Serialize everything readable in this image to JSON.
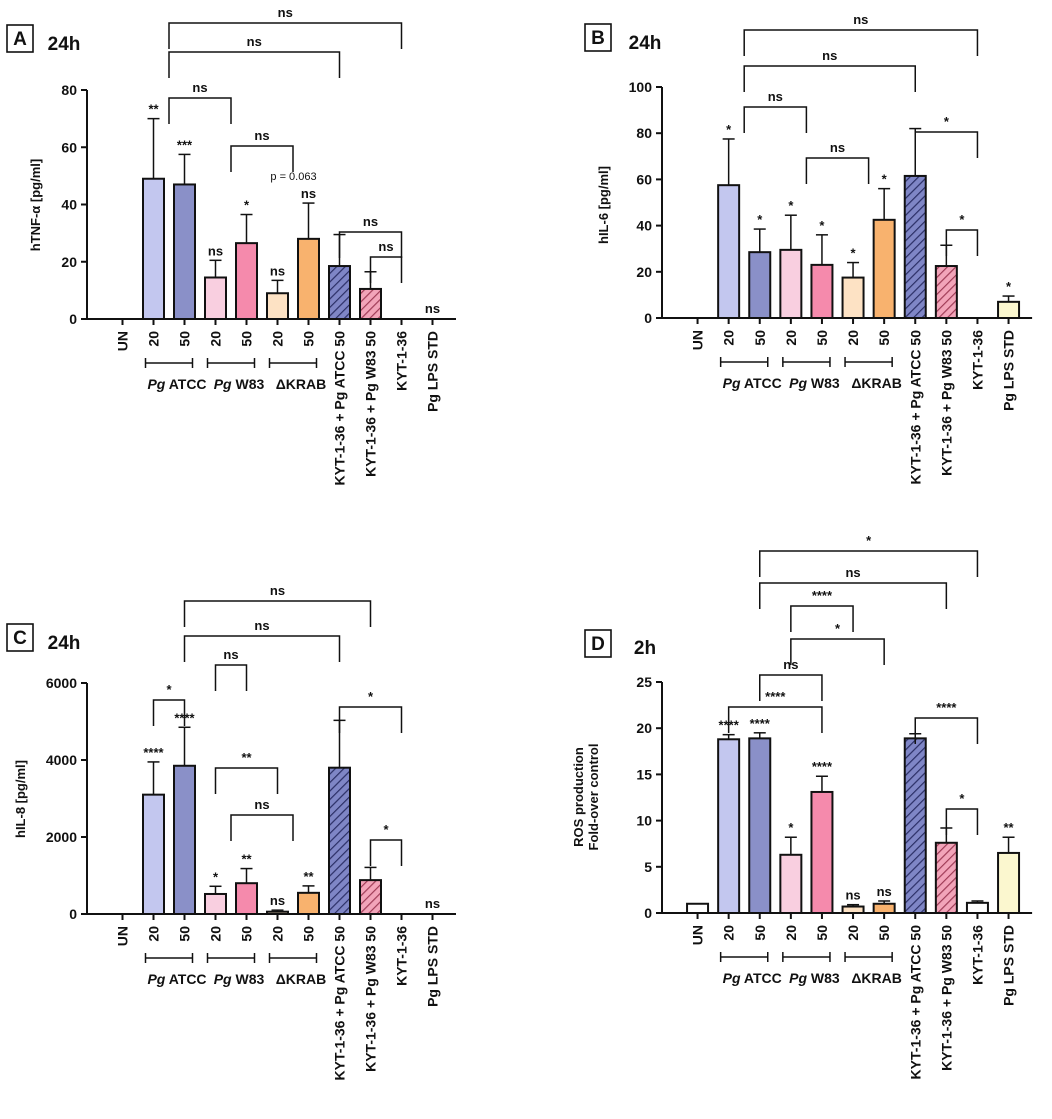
{
  "colors": {
    "UN": "#ffffff",
    "ATCC20": "#c3c7ef",
    "ATCC50": "#8a90c8",
    "W83_20": "#f9cfe0",
    "W83_50": "#f58aac",
    "KRAB20": "#fde2c4",
    "KRAB50": "#f8b26e",
    "KYT_ATCC": "#7f86c6",
    "KYT_W83": "#f2a4b9",
    "KYT": "#ffffff",
    "LPS": "#fbf7cf",
    "outline": "#111111"
  },
  "chart_data": [
    {
      "type": "bar",
      "panel": "A",
      "time": "24h",
      "ylabel": "hTNF-α [pg/ml]",
      "ylim": [
        0,
        80
      ],
      "yticks": [
        "0",
        "20",
        "40",
        "60",
        "80"
      ],
      "categories": [
        "UN",
        "20",
        "50",
        "20",
        "50",
        "20",
        "50",
        "KYT-1-36 + Pg ATCC 50",
        "KYT-1-36 + Pg W83 50",
        "KYT-1-36",
        "Pg LPS STD"
      ],
      "values": [
        0,
        49,
        47,
        14.5,
        26.5,
        9,
        28,
        18.5,
        10.5,
        0,
        0
      ],
      "errors": [
        0,
        21,
        10.5,
        6,
        10,
        4.5,
        12.5,
        11,
        6,
        0,
        0
      ],
      "stars": [
        "",
        "**",
        "***",
        "ns",
        "*",
        "ns",
        "ns",
        "",
        "",
        "",
        "ns"
      ],
      "groups": [
        "Pg ATCC",
        "Pg W83",
        "ΔKRAB"
      ],
      "comparisons": [
        "ns",
        "ns",
        "ns",
        "ns",
        "ns",
        "ns"
      ],
      "annotation": "p = 0.063"
    },
    {
      "type": "bar",
      "panel": "B",
      "time": "24h",
      "ylabel": "hIL-6 [pg/ml]",
      "ylim": [
        0,
        100
      ],
      "yticks": [
        "0",
        "20",
        "40",
        "60",
        "80",
        "100"
      ],
      "categories": [
        "UN",
        "20",
        "50",
        "20",
        "50",
        "20",
        "50",
        "KYT-1-36 + Pg ATCC 50",
        "KYT-1-36 + Pg W83 50",
        "KYT-1-36",
        "Pg LPS STD"
      ],
      "values": [
        0,
        57.5,
        28.5,
        29.5,
        23,
        17.5,
        42.5,
        61.5,
        22.5,
        0,
        7
      ],
      "errors": [
        0,
        20,
        10,
        15,
        13,
        6.5,
        13.5,
        20.5,
        9,
        0,
        2.5
      ],
      "stars": [
        "",
        "*",
        "*",
        "*",
        "*",
        "*",
        "*",
        "",
        "",
        "",
        "*"
      ],
      "groups": [
        "Pg ATCC",
        "Pg W83",
        "ΔKRAB"
      ],
      "comparisons": [
        "ns",
        "ns",
        "ns",
        "ns",
        "*",
        "*"
      ]
    },
    {
      "type": "bar",
      "panel": "C",
      "time": "24h",
      "ylabel": "hIL-8 [pg/ml]",
      "ylim": [
        0,
        6000
      ],
      "yticks": [
        "0",
        "2000",
        "4000",
        "6000"
      ],
      "categories": [
        "UN",
        "20",
        "50",
        "20",
        "50",
        "20",
        "50",
        "KYT-1-36 + Pg ATCC 50",
        "KYT-1-36 + Pg W83 50",
        "KYT-1-36",
        "Pg LPS STD"
      ],
      "values": [
        0,
        3100,
        3850,
        520,
        800,
        60,
        550,
        3800,
        880,
        0,
        0
      ],
      "errors": [
        0,
        850,
        1000,
        200,
        380,
        40,
        180,
        1230,
        330,
        0,
        0
      ],
      "stars": [
        "",
        "****",
        "****",
        "*",
        "**",
        "ns",
        "**",
        "",
        "",
        "",
        "ns"
      ],
      "groups": [
        "Pg ATCC",
        "Pg W83",
        "ΔKRAB"
      ],
      "comparisons": [
        "*",
        "ns",
        "ns",
        "ns",
        "**",
        "ns",
        "*",
        "*"
      ]
    },
    {
      "type": "bar",
      "panel": "D",
      "time": "2h",
      "ylabel": "ROS production",
      "ylabel2": "Fold-over control",
      "ylim": [
        0,
        25
      ],
      "yticks": [
        "0",
        "5",
        "10",
        "15",
        "20",
        "25"
      ],
      "categories": [
        "UN",
        "20",
        "50",
        "20",
        "50",
        "20",
        "50",
        "KYT-1-36 + Pg ATCC 50",
        "KYT-1-36 + Pg W83 50",
        "KYT-1-36",
        "Pg LPS STD"
      ],
      "values": [
        1,
        18.8,
        18.9,
        6.3,
        13.1,
        0.7,
        1,
        18.9,
        7.6,
        1.1,
        6.5
      ],
      "errors": [
        0,
        0.5,
        0.6,
        1.9,
        1.7,
        0.2,
        0.3,
        0.5,
        1.6,
        0.2,
        1.7
      ],
      "stars": [
        "",
        "****",
        "****",
        "*",
        "****",
        "ns",
        "ns",
        "",
        "",
        "",
        "**"
      ],
      "groups": [
        "Pg ATCC",
        "Pg W83",
        "ΔKRAB"
      ],
      "comparisons": [
        "****",
        "ns",
        "*",
        "****",
        "ns",
        "*",
        "****",
        "*"
      ]
    }
  ]
}
